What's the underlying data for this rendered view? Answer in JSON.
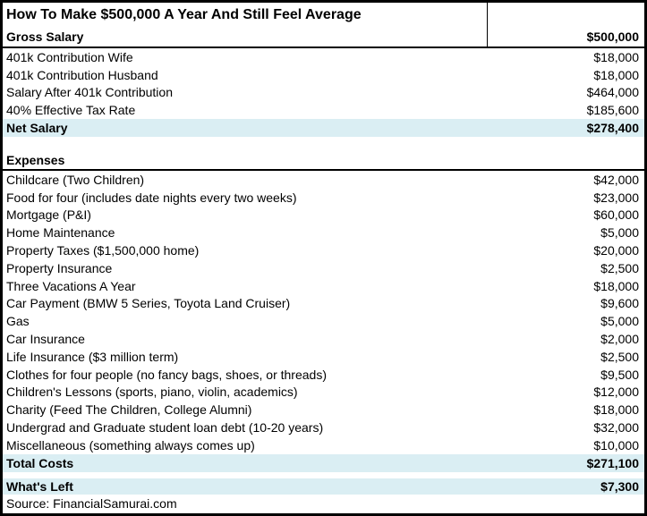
{
  "chart_data": {
    "type": "table",
    "title": "How To Make $500,000 A Year And Still Feel Average",
    "source": "Source: FinancialSamurai.com",
    "income": {
      "header": {
        "label": "Gross Salary",
        "value": "$500,000"
      },
      "rows": [
        {
          "label": "401k Contribution Wife",
          "value": "$18,000"
        },
        {
          "label": "401k Contribution Husband",
          "value": "$18,000"
        },
        {
          "label": "Salary After 401k Contribution",
          "value": "$464,000"
        },
        {
          "label": "40% Effective Tax Rate",
          "value": "$185,600"
        }
      ],
      "total": {
        "label": "Net Salary",
        "value": "$278,400"
      }
    },
    "expenses": {
      "header_label": "Expenses",
      "rows": [
        {
          "label": "Childcare (Two Children)",
          "value": "$42,000"
        },
        {
          "label": "Food for four (includes date nights every two weeks)",
          "value": "$23,000"
        },
        {
          "label": "Mortgage (P&I)",
          "value": "$60,000"
        },
        {
          "label": "Home Maintenance",
          "value": "$5,000"
        },
        {
          "label": "Property Taxes ($1,500,000 home)",
          "value": "$20,000"
        },
        {
          "label": "Property Insurance",
          "value": "$2,500"
        },
        {
          "label": "Three Vacations A Year",
          "value": "$18,000"
        },
        {
          "label": "Car Payment (BMW 5 Series, Toyota Land Cruiser)",
          "value": "$9,600"
        },
        {
          "label": "Gas",
          "value": "$5,000"
        },
        {
          "label": "Car Insurance",
          "value": "$2,000"
        },
        {
          "label": "Life Insurance ($3 million term)",
          "value": "$2,500"
        },
        {
          "label": "Clothes for four people (no fancy bags, shoes, or threads)",
          "value": "$9,500"
        },
        {
          "label": "Children's Lessons (sports, piano, violin, academics)",
          "value": "$12,000"
        },
        {
          "label": "Charity (Feed The Children, College Alumni)",
          "value": "$18,000"
        },
        {
          "label": "Undergrad and Graduate student loan debt (10-20 years)",
          "value": "$32,000"
        },
        {
          "label": "Miscellaneous (something always comes up)",
          "value": "$10,000"
        }
      ],
      "total": {
        "label": "Total Costs",
        "value": "$271,100"
      }
    },
    "whats_left": {
      "label": "What's Left",
      "value": "$7,300"
    }
  },
  "colors": {
    "highlight_row": "#DAEEF3",
    "border": "#000000",
    "text": "#000000",
    "background": "#FFFFFF"
  }
}
